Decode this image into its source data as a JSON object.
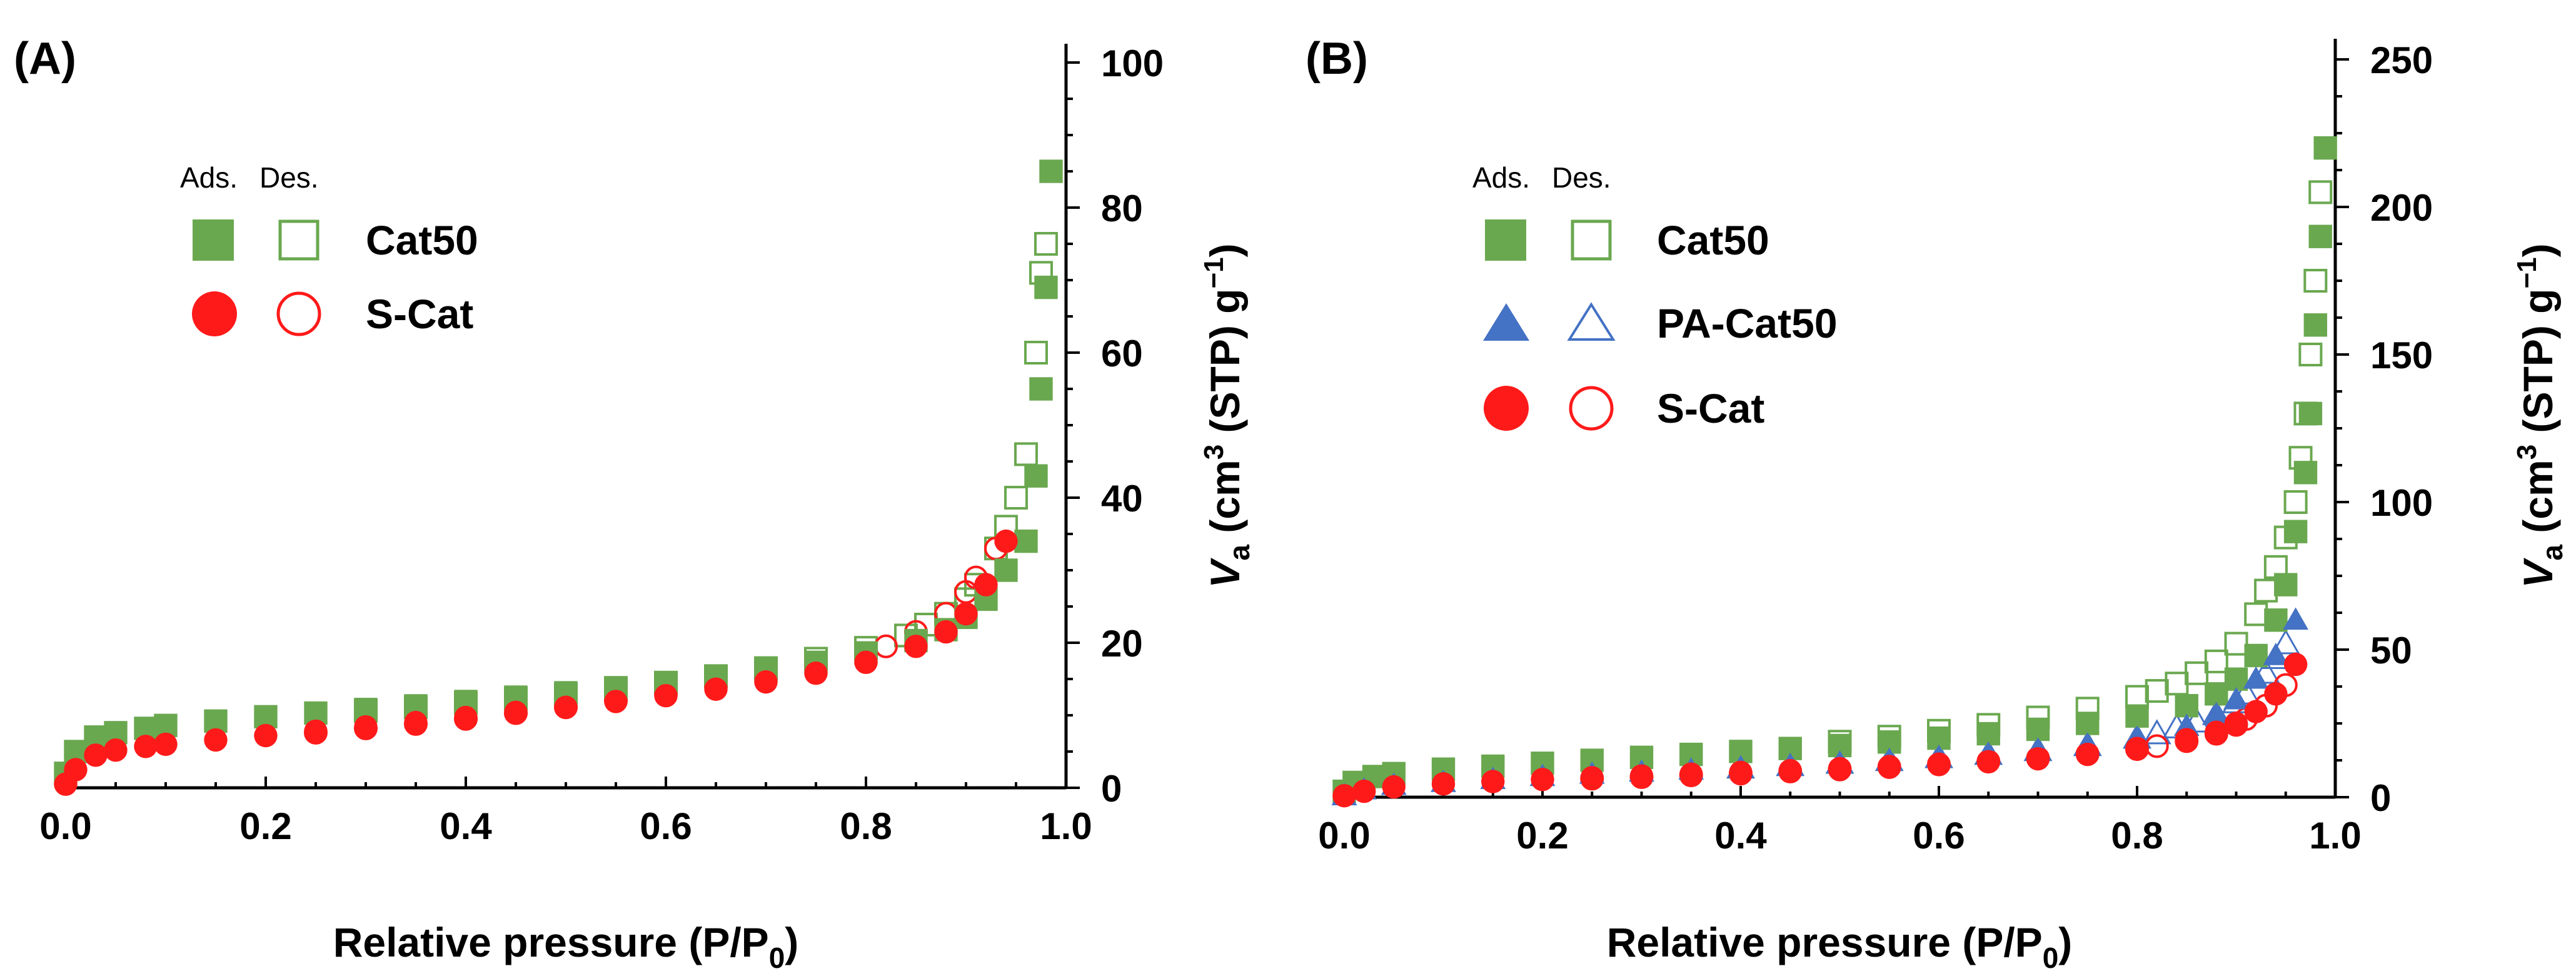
{
  "colors": {
    "Cat50": "#6aa84f",
    "PA-Cat50": "#4472c4",
    "S-Cat": "#ff1a1a"
  },
  "chart_data": [
    {
      "panel": "(A)",
      "type": "scatter",
      "xlabel_main": "Relative pressure (P/P",
      "xlabel_sub": "0",
      "xlabel_end": ")",
      "ylabel_var": "V",
      "ylabel_var_sub": "a",
      "ylabel_unit1": " (cm",
      "ylabel_sup3": "3",
      "ylabel_unit2": " (STP) g",
      "ylabel_supneg": "−1",
      "ylabel_end": ")",
      "xlim": [
        0,
        1.0
      ],
      "ylim": [
        0,
        100
      ],
      "xticks": [
        0.0,
        0.2,
        0.4,
        0.6,
        0.8,
        1.0
      ],
      "xtick_labels": [
        "0.0",
        "0.2",
        "0.4",
        "0.6",
        "0.8",
        "1.0"
      ],
      "yticks": [
        0,
        20,
        40,
        60,
        80,
        100
      ],
      "ytick_labels": [
        "0",
        "20",
        "40",
        "60",
        "80",
        "100"
      ],
      "legend_head_ads": "Ads.",
      "legend_head_des": "Des.",
      "legend_placement": "top-left",
      "series": [
        {
          "name": "Cat50",
          "branch": "ads",
          "marker": "square",
          "filled": true,
          "x": [
            0.0,
            0.01,
            0.03,
            0.05,
            0.08,
            0.1,
            0.15,
            0.2,
            0.25,
            0.3,
            0.35,
            0.4,
            0.45,
            0.5,
            0.55,
            0.6,
            0.65,
            0.7,
            0.75,
            0.8,
            0.85,
            0.88,
            0.9,
            0.92,
            0.94,
            0.96,
            0.97,
            0.975,
            0.98,
            0.985
          ],
          "y": [
            2,
            5,
            7,
            7.6,
            8.2,
            8.6,
            9.2,
            9.8,
            10.3,
            10.8,
            11.3,
            11.9,
            12.5,
            13.1,
            13.8,
            14.5,
            15.3,
            16.2,
            17.3,
            18.6,
            20.3,
            21.8,
            23.5,
            26,
            30,
            34,
            43,
            55,
            69,
            85
          ]
        },
        {
          "name": "Cat50",
          "branch": "des",
          "marker": "square",
          "filled": false,
          "x": [
            0.98,
            0.975,
            0.97,
            0.96,
            0.95,
            0.94,
            0.93,
            0.91,
            0.9,
            0.88,
            0.86,
            0.84,
            0.8,
            0.75,
            0.7,
            0.65,
            0.6,
            0.55,
            0.5,
            0.45,
            0.4,
            0.35,
            0.3
          ],
          "y": [
            75,
            71,
            60,
            46,
            40,
            36,
            33,
            28,
            26,
            24,
            22.5,
            21,
            19.3,
            17.8,
            16.5,
            15.4,
            14.5,
            13.7,
            12.9,
            12.3,
            11.7,
            11.1,
            10.6
          ]
        },
        {
          "name": "S-Cat",
          "branch": "ads",
          "marker": "circle",
          "filled": true,
          "x": [
            0.0,
            0.01,
            0.03,
            0.05,
            0.08,
            0.1,
            0.15,
            0.2,
            0.25,
            0.3,
            0.35,
            0.4,
            0.45,
            0.5,
            0.55,
            0.6,
            0.65,
            0.7,
            0.75,
            0.8,
            0.85,
            0.88,
            0.9,
            0.92,
            0.94
          ],
          "y": [
            0.5,
            2.5,
            4.5,
            5.2,
            5.7,
            6,
            6.6,
            7.2,
            7.8,
            8.4,
            9,
            9.7,
            10.4,
            11.1,
            11.9,
            12.7,
            13.6,
            14.6,
            15.8,
            17.3,
            19.5,
            21.5,
            24,
            28,
            34
          ]
        },
        {
          "name": "S-Cat",
          "branch": "des",
          "marker": "circle",
          "filled": false,
          "x": [
            0.93,
            0.91,
            0.9,
            0.88,
            0.85,
            0.82,
            0.8,
            0.75,
            0.7,
            0.65,
            0.6,
            0.55,
            0.5,
            0.45,
            0.4,
            0.35,
            0.3,
            0.25
          ],
          "y": [
            33,
            29,
            27,
            24,
            21.5,
            19.5,
            18.5,
            16.8,
            15.3,
            14.1,
            13,
            12,
            11.1,
            10.3,
            9.5,
            8.8,
            8.2,
            7.6
          ]
        }
      ]
    },
    {
      "panel": "(B)",
      "type": "scatter",
      "xlabel_main": "Relative pressure (P/P",
      "xlabel_sub": "0",
      "xlabel_end": ")",
      "ylabel_var": "V",
      "ylabel_var_sub": "a",
      "ylabel_unit1": " (cm",
      "ylabel_sup3": "3",
      "ylabel_unit2": " (STP) g",
      "ylabel_supneg": "−1",
      "ylabel_end": ")",
      "xlim": [
        0,
        1.0
      ],
      "ylim": [
        0,
        250
      ],
      "xticks": [
        0.0,
        0.2,
        0.4,
        0.6,
        0.8,
        1.0
      ],
      "xtick_labels": [
        "0.0",
        "0.2",
        "0.4",
        "0.6",
        "0.8",
        "1.0"
      ],
      "yticks": [
        0,
        50,
        100,
        150,
        200,
        250
      ],
      "ytick_labels": [
        "0",
        "50",
        "100",
        "150",
        "200",
        "250"
      ],
      "legend_head_ads": "Ads.",
      "legend_head_des": "Des.",
      "legend_placement": "top-left",
      "series": [
        {
          "name": "Cat50",
          "branch": "ads",
          "marker": "square",
          "filled": true,
          "x": [
            0.0,
            0.01,
            0.03,
            0.05,
            0.1,
            0.15,
            0.2,
            0.25,
            0.3,
            0.35,
            0.4,
            0.45,
            0.5,
            0.55,
            0.6,
            0.65,
            0.7,
            0.75,
            0.8,
            0.85,
            0.88,
            0.9,
            0.92,
            0.94,
            0.95,
            0.96,
            0.97,
            0.975,
            0.98,
            0.985,
            0.99
          ],
          "y": [
            2,
            5,
            7,
            8,
            9.5,
            10.5,
            11.5,
            12.5,
            13.5,
            14.5,
            15.5,
            16.5,
            17.5,
            18.7,
            20,
            21.5,
            23,
            25,
            27.5,
            31,
            35,
            40,
            48,
            60,
            72,
            90,
            110,
            130,
            160,
            190,
            220
          ]
        },
        {
          "name": "Cat50",
          "branch": "des",
          "marker": "square",
          "filled": false,
          "x": [
            0.985,
            0.98,
            0.975,
            0.97,
            0.965,
            0.96,
            0.95,
            0.94,
            0.93,
            0.92,
            0.9,
            0.88,
            0.86,
            0.84,
            0.82,
            0.8,
            0.75,
            0.7,
            0.65,
            0.6,
            0.55,
            0.5
          ],
          "y": [
            205,
            175,
            150,
            130,
            115,
            100,
            88,
            78,
            70,
            62,
            52,
            46,
            42,
            38.5,
            36,
            34,
            30,
            27,
            24.5,
            22.5,
            20.5,
            18.8
          ]
        },
        {
          "name": "PA-Cat50",
          "branch": "ads",
          "marker": "triangle",
          "filled": true,
          "x": [
            0.0,
            0.02,
            0.05,
            0.1,
            0.15,
            0.2,
            0.25,
            0.3,
            0.35,
            0.4,
            0.45,
            0.5,
            0.55,
            0.6,
            0.65,
            0.7,
            0.75,
            0.8,
            0.85,
            0.88,
            0.9,
            0.92,
            0.94,
            0.96
          ],
          "y": [
            0.5,
            2.5,
            4,
            5,
            6,
            7,
            7.8,
            8.5,
            9.2,
            10,
            10.8,
            11.6,
            12.5,
            13.5,
            14.6,
            16,
            17.7,
            20,
            24,
            28,
            33,
            40,
            48,
            60
          ]
        },
        {
          "name": "PA-Cat50",
          "branch": "des",
          "marker": "triangle",
          "filled": false,
          "x": [
            0.95,
            0.94,
            0.93,
            0.91,
            0.9,
            0.88,
            0.86,
            0.84,
            0.82,
            0.8,
            0.75,
            0.7,
            0.65,
            0.6,
            0.55,
            0.5,
            0.45,
            0.4
          ],
          "y": [
            52,
            47,
            42,
            35,
            32,
            28,
            25.5,
            23.5,
            21.5,
            20,
            17.5,
            15.8,
            14.5,
            13.4,
            12.4,
            11.5,
            10.7,
            9.9
          ]
        },
        {
          "name": "S-Cat",
          "branch": "ads",
          "marker": "circle",
          "filled": true,
          "x": [
            0.0,
            0.02,
            0.05,
            0.1,
            0.15,
            0.2,
            0.25,
            0.3,
            0.35,
            0.4,
            0.45,
            0.5,
            0.55,
            0.6,
            0.65,
            0.7,
            0.75,
            0.8,
            0.85,
            0.88,
            0.9,
            0.92,
            0.94,
            0.96
          ],
          "y": [
            0.5,
            2,
            3.5,
            4.5,
            5.3,
            6,
            6.6,
            7.2,
            7.8,
            8.4,
            9,
            9.7,
            10.4,
            11.2,
            12,
            13,
            14.5,
            16.5,
            19.5,
            22,
            25,
            29,
            35,
            45
          ]
        },
        {
          "name": "S-Cat",
          "branch": "des",
          "marker": "circle",
          "filled": false,
          "x": [
            0.95,
            0.93,
            0.91,
            0.9,
            0.88,
            0.85,
            0.82,
            0.8,
            0.75,
            0.7,
            0.65,
            0.6,
            0.55,
            0.5,
            0.45,
            0.4,
            0.35,
            0.3,
            0.25
          ],
          "y": [
            38,
            31,
            26.5,
            24.5,
            21.5,
            19,
            17.3,
            16.3,
            14.6,
            13.2,
            12.1,
            11.1,
            10.2,
            9.4,
            8.7,
            8,
            7.4,
            6.8,
            6.3
          ]
        }
      ]
    }
  ]
}
